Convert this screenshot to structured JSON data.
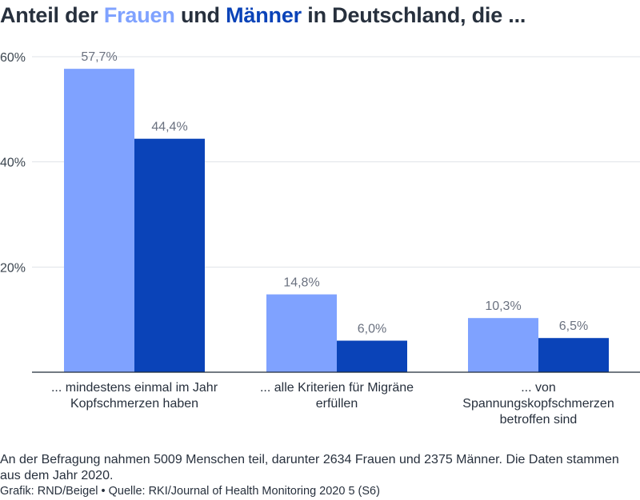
{
  "title": {
    "prefix": "Anteil der ",
    "women": "Frauen",
    "middle": " und ",
    "men": "Männer",
    "suffix": " in Deutschland, die ..."
  },
  "chart_data": {
    "type": "bar",
    "categories": [
      [
        "... mindestens einmal im Jahr",
        "Kopfschmerzen haben"
      ],
      [
        "... alle Kriterien für Migräne",
        "erfüllen"
      ],
      [
        "... von",
        "Spannungskopfschmerzen",
        "betroffen sind"
      ]
    ],
    "series": [
      {
        "name": "Frauen",
        "color": "#7fa2ff",
        "values": [
          57.7,
          14.8,
          10.3
        ],
        "labels": [
          "57,7%",
          "14,8%",
          "10,3%"
        ]
      },
      {
        "name": "Männer",
        "color": "#0a43b8",
        "values": [
          44.4,
          6.0,
          6.5
        ],
        "labels": [
          "44,4%",
          "6,0%",
          "6,5%"
        ]
      }
    ],
    "yticks": [
      20,
      40,
      60
    ],
    "ytick_labels": [
      "20%",
      "40%",
      "60%"
    ],
    "ylim": [
      0,
      60
    ],
    "grid": true,
    "legend": "in title"
  },
  "note": "An der Befragung nahmen 5009 Menschen teil, darunter 2634 Frauen und 2375 Männer. Die Daten stammen aus dem Jahr 2020.",
  "source": "Grafik: RND/Beigel • Quelle: RKI/Journal of Health Monitoring 2020 5 (S6)"
}
